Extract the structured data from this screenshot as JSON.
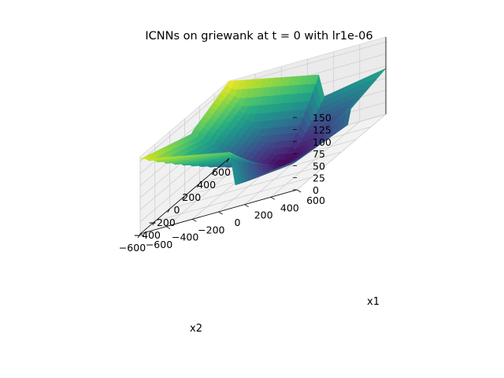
{
  "chart_data": {
    "type": "surface",
    "title": "ICNNs on griewank at t = 0 with lr1e-06",
    "xlabel": "x1",
    "ylabel": "x2",
    "zlabel": "",
    "x1_range": [
      -600,
      600
    ],
    "x2_range": [
      -600,
      600
    ],
    "z_range": [
      0,
      160
    ],
    "x1_ticks": [
      -600,
      -400,
      -200,
      0,
      200,
      400,
      600
    ],
    "x1_tick_labels": [
      "−600",
      "−400",
      "−200",
      "0",
      "200",
      "400",
      "600"
    ],
    "x2_ticks": [
      600,
      400,
      200,
      0,
      -200,
      -400,
      -600
    ],
    "x2_tick_labels": [
      "600",
      "400",
      "200",
      "0",
      "−200",
      "−400",
      "−600"
    ],
    "z_ticks": [
      0,
      25,
      50,
      75,
      100,
      125,
      150
    ],
    "z_tick_labels": [
      "0",
      "25",
      "50",
      "75",
      "100",
      "125",
      "150"
    ],
    "colormap": "viridis",
    "corner_values": [
      {
        "x1": 600,
        "x2": -600,
        "z": 155
      },
      {
        "x1": 600,
        "x2": 600,
        "z": 60
      },
      {
        "x1": -600,
        "x2": 600,
        "z": 95
      },
      {
        "x1": -600,
        "x2": -600,
        "z": 160
      }
    ],
    "min_value": {
      "x1": -100,
      "x2": 100,
      "z": 0
    },
    "grid": true
  }
}
